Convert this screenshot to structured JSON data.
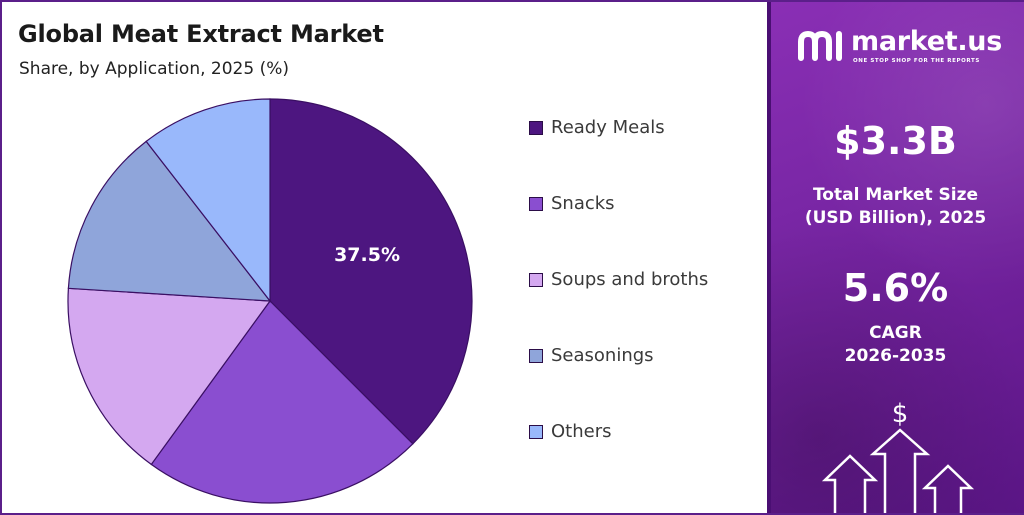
{
  "title": "Global Meat Extract Market",
  "subtitle": "Share, by Application, 2025 (%)",
  "chart_data": {
    "type": "pie",
    "title": "Global Meat Extract Market",
    "subtitle": "Share, by Application, 2025 (%)",
    "categories": [
      "Ready Meals",
      "Snacks",
      "Soups and broths",
      "Seasonings",
      "Others"
    ],
    "values": [
      37.5,
      22.5,
      16.0,
      13.5,
      10.5
    ],
    "labeled_values": {
      "Ready Meals": "37.5%"
    },
    "colors": [
      "#4d1680",
      "#8a4ed0",
      "#d4a8f0",
      "#8fa5da",
      "#99b8fb"
    ],
    "legend": "right"
  },
  "legend_items": [
    {
      "label": "Ready Meals",
      "color": "#4d1680"
    },
    {
      "label": "Snacks",
      "color": "#8a4ed0"
    },
    {
      "label": "Soups and broths",
      "color": "#d4a8f0"
    },
    {
      "label": "Seasonings",
      "color": "#8fa5da"
    },
    {
      "label": "Others",
      "color": "#99b8fb"
    }
  ],
  "brand": {
    "name": "market.us",
    "tagline": "ONE STOP SHOP FOR THE REPORTS"
  },
  "stats": {
    "market_size_value": "$3.3B",
    "market_size_label_1": "Total Market Size",
    "market_size_label_2": "(USD Billion), 2025",
    "cagr_value": "5.6%",
    "cagr_label_1": "CAGR",
    "cagr_label_2": "2026-2035"
  },
  "decor": {
    "currency_symbol": "$"
  }
}
